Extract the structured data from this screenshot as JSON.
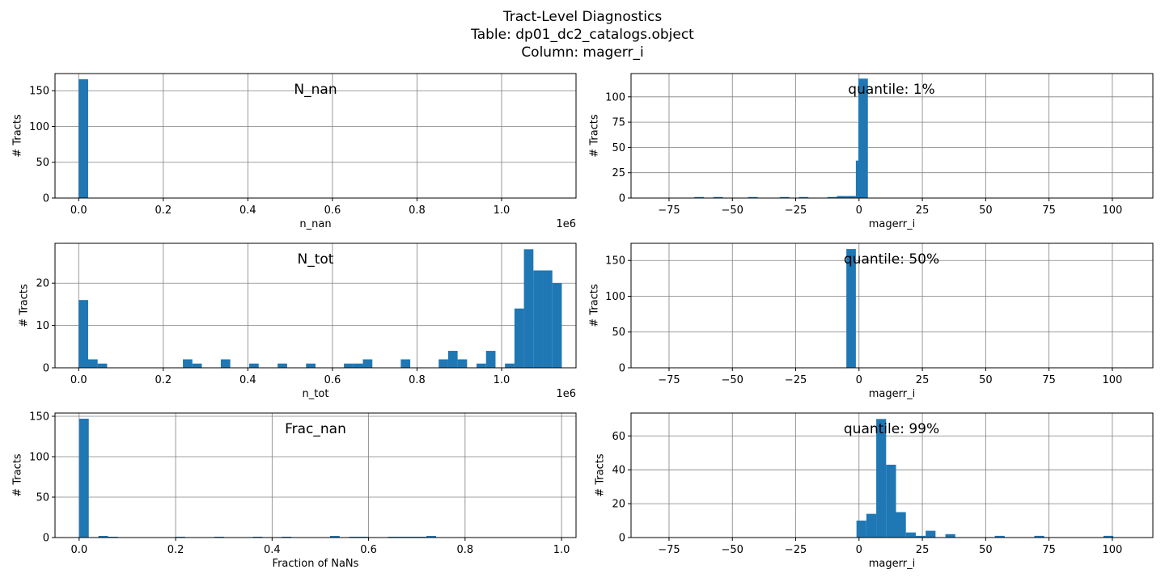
{
  "figure": {
    "title_lines": [
      "Tract-Level Diagnostics",
      "Table:  dp01_dc2_catalogs.object",
      "Column:  magerr_i"
    ]
  },
  "style": {
    "bar_color": "#1f77b4",
    "grid_color": "#808080"
  },
  "chart_data": [
    {
      "type": "bar",
      "annotation": "N_nan",
      "xlabel": "n_nan",
      "ylabel": "# Tracts",
      "offset_text": "1e6",
      "xlim": [
        -0.056,
        1.176
      ],
      "ylim": [
        0,
        174
      ],
      "xticks": [
        0.0,
        0.2,
        0.4,
        0.6,
        0.8,
        1.0
      ],
      "xtick_labels": [
        "0.0",
        "0.2",
        "0.4",
        "0.6",
        "0.8",
        "1.0"
      ],
      "yticks": [
        0,
        50,
        100,
        150
      ],
      "ytick_labels": [
        "0",
        "50",
        "100",
        "150"
      ],
      "grid": true,
      "bin_width": 0.0224,
      "bins": [
        [
          0.0,
          166
        ]
      ]
    },
    {
      "type": "bar",
      "annotation": "quantile: 1%",
      "xlabel": "magerr_i",
      "ylabel": "# Tracts",
      "xlim": [
        -90,
        116
      ],
      "ylim": [
        0,
        123
      ],
      "xticks": [
        -75,
        -50,
        -25,
        0,
        25,
        50,
        75,
        100
      ],
      "xtick_labels": [
        "−75",
        "−50",
        "−25",
        "0",
        "25",
        "50",
        "75",
        "100"
      ],
      "yticks": [
        0,
        25,
        50,
        75,
        100
      ],
      "ytick_labels": [
        "0",
        "25",
        "50",
        "75",
        "100"
      ],
      "grid": true,
      "bin_width": 3.75,
      "bins": [
        [
          -65,
          1
        ],
        [
          -57.5,
          1
        ],
        [
          -43.75,
          1
        ],
        [
          -31.25,
          1
        ],
        [
          -23.75,
          1
        ],
        [
          -12.5,
          1
        ],
        [
          -8.75,
          2
        ],
        [
          -5.0,
          2
        ],
        [
          -1.25,
          37
        ],
        [
          -0.25,
          118
        ]
      ]
    },
    {
      "type": "bar",
      "annotation": "N_tot",
      "xlabel": "n_tot",
      "ylabel": "# Tracts",
      "offset_text": "1e6",
      "xlim": [
        -0.056,
        1.176
      ],
      "ylim": [
        0,
        29.4
      ],
      "xticks": [
        0.0,
        0.2,
        0.4,
        0.6,
        0.8,
        1.0
      ],
      "xtick_labels": [
        "0.0",
        "0.2",
        "0.4",
        "0.6",
        "0.8",
        "1.0"
      ],
      "yticks": [
        0,
        10,
        20
      ],
      "ytick_labels": [
        "0",
        "10",
        "20"
      ],
      "grid": true,
      "bin_width": 0.0224,
      "bins": [
        [
          0.0,
          16
        ],
        [
          0.0224,
          2
        ],
        [
          0.0448,
          1
        ],
        [
          0.2464,
          2
        ],
        [
          0.2688,
          1
        ],
        [
          0.336,
          2
        ],
        [
          0.4032,
          1
        ],
        [
          0.4704,
          1
        ],
        [
          0.5376,
          1
        ],
        [
          0.6272,
          1
        ],
        [
          0.6496,
          1
        ],
        [
          0.672,
          2
        ],
        [
          0.7616,
          2
        ],
        [
          0.8512,
          2
        ],
        [
          0.8736,
          4
        ],
        [
          0.896,
          2
        ],
        [
          0.9408,
          1
        ],
        [
          0.9632,
          4
        ],
        [
          1.008,
          1
        ],
        [
          1.0304,
          14
        ],
        [
          1.0528,
          28
        ],
        [
          1.0752,
          23
        ],
        [
          1.0976,
          23
        ],
        [
          1.12,
          20
        ]
      ]
    },
    {
      "type": "bar",
      "annotation": "quantile: 50%",
      "xlabel": "magerr_i",
      "ylabel": "# Tracts",
      "xlim": [
        -90,
        116
      ],
      "ylim": [
        0,
        174
      ],
      "xticks": [
        -75,
        -50,
        -25,
        0,
        25,
        50,
        75,
        100
      ],
      "xtick_labels": [
        "−75",
        "−50",
        "−25",
        "0",
        "25",
        "50",
        "75",
        "100"
      ],
      "yticks": [
        0,
        50,
        100,
        150
      ],
      "ytick_labels": [
        "0",
        "50",
        "100",
        "150"
      ],
      "grid": true,
      "bin_width": 3.75,
      "bins": [
        [
          -5.0,
          166
        ]
      ]
    },
    {
      "type": "bar",
      "annotation": "Frac_nan",
      "xlabel": "Fraction of NaNs",
      "ylabel": "# Tracts",
      "xlim": [
        -0.05,
        1.03
      ],
      "ylim": [
        0,
        154
      ],
      "xticks": [
        0.0,
        0.2,
        0.4,
        0.6,
        0.8,
        1.0
      ],
      "xtick_labels": [
        "0.0",
        "0.2",
        "0.4",
        "0.6",
        "0.8",
        "1.0"
      ],
      "yticks": [
        0,
        50,
        100,
        150
      ],
      "ytick_labels": [
        "0",
        "50",
        "100",
        "150"
      ],
      "grid": true,
      "bin_width": 0.02,
      "bins": [
        [
          0.0,
          147
        ],
        [
          0.04,
          2
        ],
        [
          0.06,
          1
        ],
        [
          0.2,
          1
        ],
        [
          0.28,
          1
        ],
        [
          0.36,
          1
        ],
        [
          0.42,
          1
        ],
        [
          0.52,
          2
        ],
        [
          0.56,
          1
        ],
        [
          0.58,
          1
        ],
        [
          0.64,
          1
        ],
        [
          0.66,
          1
        ],
        [
          0.68,
          1
        ],
        [
          0.7,
          1
        ],
        [
          0.72,
          2
        ]
      ]
    },
    {
      "type": "bar",
      "annotation": "quantile: 99%",
      "xlabel": "magerr_i",
      "ylabel": "# Tracts",
      "xlim": [
        -90,
        116
      ],
      "ylim": [
        0,
        73.5
      ],
      "xticks": [
        -75,
        -50,
        -25,
        0,
        25,
        50,
        75,
        100
      ],
      "xtick_labels": [
        "−75",
        "−50",
        "−25",
        "0",
        "25",
        "50",
        "75",
        "100"
      ],
      "yticks": [
        0,
        20,
        40,
        60
      ],
      "ytick_labels": [
        "0",
        "20",
        "40",
        "60"
      ],
      "grid": true,
      "bin_width": 3.9,
      "bins": [
        [
          -1.0,
          10
        ],
        [
          2.9,
          14
        ],
        [
          6.8,
          70
        ],
        [
          10.7,
          43
        ],
        [
          14.6,
          15
        ],
        [
          18.5,
          3
        ],
        [
          22.4,
          1
        ],
        [
          26.3,
          4
        ],
        [
          34.1,
          2
        ],
        [
          53.6,
          1
        ],
        [
          69.2,
          1
        ],
        [
          96.5,
          1
        ]
      ]
    }
  ]
}
